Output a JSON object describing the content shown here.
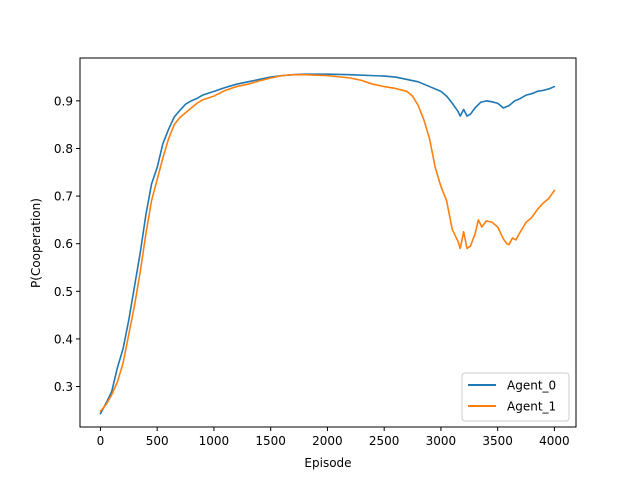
{
  "chart_data": {
    "type": "line",
    "xlabel": "Episode",
    "ylabel": "P(Cooperation)",
    "xlim": [
      -180,
      4190
    ],
    "ylim": [
      0.215,
      0.99
    ],
    "xticks": [
      0,
      500,
      1000,
      1500,
      2000,
      2500,
      3000,
      3500,
      4000
    ],
    "xtick_labels": [
      "0",
      "500",
      "1000",
      "1500",
      "2000",
      "2500",
      "3000",
      "3500",
      "4000"
    ],
    "yticks": [
      0.3,
      0.4,
      0.5,
      0.6,
      0.7,
      0.8,
      0.9
    ],
    "ytick_labels": [
      "0.3",
      "0.4",
      "0.5",
      "0.6",
      "0.7",
      "0.8",
      "0.9"
    ],
    "legend_position": "lower-right",
    "grid": false,
    "series": [
      {
        "name": "Agent_0",
        "color": "#1f77b4",
        "points": [
          [
            0,
            0.243
          ],
          [
            50,
            0.265
          ],
          [
            100,
            0.29
          ],
          [
            150,
            0.34
          ],
          [
            200,
            0.38
          ],
          [
            250,
            0.44
          ],
          [
            300,
            0.51
          ],
          [
            350,
            0.58
          ],
          [
            400,
            0.66
          ],
          [
            450,
            0.725
          ],
          [
            500,
            0.76
          ],
          [
            550,
            0.81
          ],
          [
            600,
            0.84
          ],
          [
            650,
            0.866
          ],
          [
            700,
            0.88
          ],
          [
            750,
            0.893
          ],
          [
            800,
            0.9
          ],
          [
            850,
            0.905
          ],
          [
            900,
            0.912
          ],
          [
            1000,
            0.92
          ],
          [
            1100,
            0.928
          ],
          [
            1200,
            0.935
          ],
          [
            1300,
            0.94
          ],
          [
            1400,
            0.945
          ],
          [
            1500,
            0.95
          ],
          [
            1600,
            0.953
          ],
          [
            1700,
            0.955
          ],
          [
            1800,
            0.956
          ],
          [
            2000,
            0.956
          ],
          [
            2200,
            0.955
          ],
          [
            2400,
            0.953
          ],
          [
            2500,
            0.952
          ],
          [
            2600,
            0.95
          ],
          [
            2700,
            0.945
          ],
          [
            2800,
            0.94
          ],
          [
            2900,
            0.93
          ],
          [
            3000,
            0.92
          ],
          [
            3050,
            0.91
          ],
          [
            3100,
            0.895
          ],
          [
            3150,
            0.878
          ],
          [
            3170,
            0.868
          ],
          [
            3200,
            0.882
          ],
          [
            3230,
            0.868
          ],
          [
            3260,
            0.872
          ],
          [
            3300,
            0.885
          ],
          [
            3350,
            0.897
          ],
          [
            3400,
            0.9
          ],
          [
            3450,
            0.898
          ],
          [
            3500,
            0.895
          ],
          [
            3550,
            0.885
          ],
          [
            3600,
            0.89
          ],
          [
            3650,
            0.9
          ],
          [
            3700,
            0.905
          ],
          [
            3750,
            0.912
          ],
          [
            3800,
            0.915
          ],
          [
            3850,
            0.92
          ],
          [
            3900,
            0.922
          ],
          [
            3950,
            0.925
          ],
          [
            4000,
            0.93
          ]
        ]
      },
      {
        "name": "Agent_1",
        "color": "#ff7f0e",
        "points": [
          [
            0,
            0.248
          ],
          [
            50,
            0.262
          ],
          [
            100,
            0.283
          ],
          [
            150,
            0.31
          ],
          [
            200,
            0.35
          ],
          [
            250,
            0.41
          ],
          [
            300,
            0.47
          ],
          [
            350,
            0.54
          ],
          [
            400,
            0.62
          ],
          [
            450,
            0.69
          ],
          [
            500,
            0.735
          ],
          [
            550,
            0.78
          ],
          [
            600,
            0.82
          ],
          [
            650,
            0.85
          ],
          [
            700,
            0.865
          ],
          [
            750,
            0.875
          ],
          [
            800,
            0.885
          ],
          [
            850,
            0.895
          ],
          [
            900,
            0.902
          ],
          [
            1000,
            0.91
          ],
          [
            1100,
            0.922
          ],
          [
            1200,
            0.93
          ],
          [
            1300,
            0.935
          ],
          [
            1400,
            0.942
          ],
          [
            1500,
            0.948
          ],
          [
            1600,
            0.953
          ],
          [
            1700,
            0.955
          ],
          [
            1800,
            0.955
          ],
          [
            2000,
            0.953
          ],
          [
            2200,
            0.948
          ],
          [
            2300,
            0.943
          ],
          [
            2400,
            0.935
          ],
          [
            2500,
            0.93
          ],
          [
            2600,
            0.926
          ],
          [
            2700,
            0.92
          ],
          [
            2750,
            0.91
          ],
          [
            2800,
            0.89
          ],
          [
            2850,
            0.86
          ],
          [
            2900,
            0.82
          ],
          [
            2950,
            0.76
          ],
          [
            3000,
            0.72
          ],
          [
            3050,
            0.69
          ],
          [
            3100,
            0.63
          ],
          [
            3150,
            0.605
          ],
          [
            3170,
            0.59
          ],
          [
            3200,
            0.625
          ],
          [
            3230,
            0.59
          ],
          [
            3260,
            0.595
          ],
          [
            3300,
            0.62
          ],
          [
            3330,
            0.65
          ],
          [
            3360,
            0.635
          ],
          [
            3400,
            0.648
          ],
          [
            3450,
            0.645
          ],
          [
            3500,
            0.635
          ],
          [
            3550,
            0.61
          ],
          [
            3580,
            0.6
          ],
          [
            3600,
            0.598
          ],
          [
            3630,
            0.612
          ],
          [
            3660,
            0.608
          ],
          [
            3700,
            0.625
          ],
          [
            3750,
            0.645
          ],
          [
            3800,
            0.655
          ],
          [
            3850,
            0.672
          ],
          [
            3900,
            0.685
          ],
          [
            3950,
            0.695
          ],
          [
            4000,
            0.712
          ]
        ]
      }
    ]
  }
}
